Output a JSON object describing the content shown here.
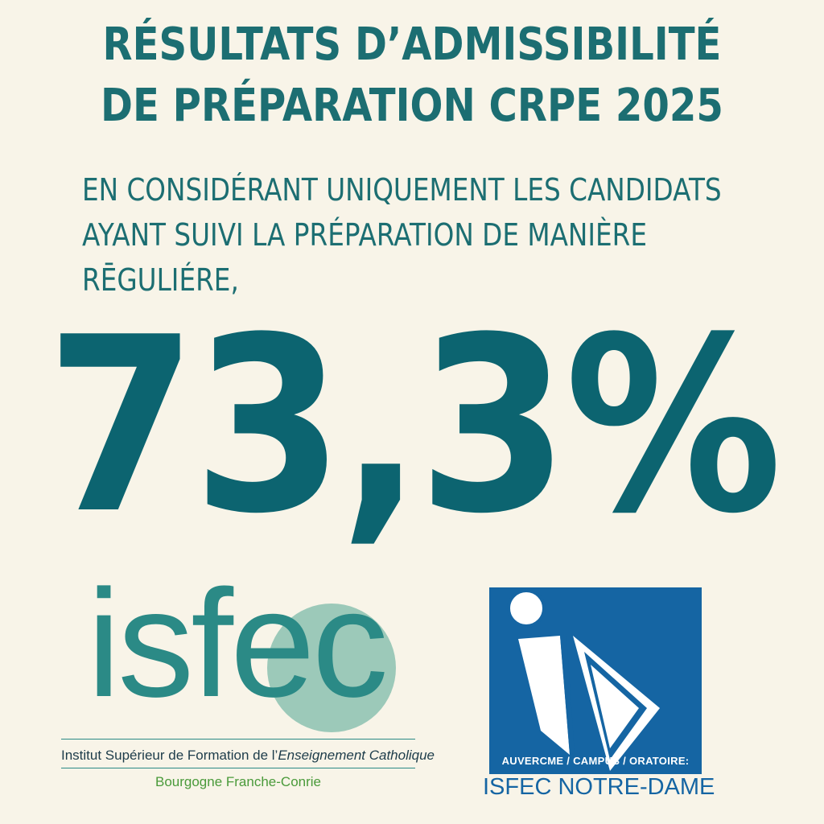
{
  "header": {
    "title_line1": "RÉSULTATS D’ADMISSIBILITÉ",
    "title_line2": "DE PRÉPARATION CRPE 2025"
  },
  "subtitle": {
    "line1": "EN CONSIDÉRANT UNIQUEMENT LES CANDIDATS",
    "line2": "AYANT SUIVI LA PRÉPARATION DE MANIÈRE",
    "line3": "RĒGULIÉRE,"
  },
  "stat": {
    "value": "73,3%"
  },
  "isfec_logo": {
    "wordmark": "isfec",
    "tagline_prefix": "Institut Supérieur de Formation de l’",
    "tagline_italic": "Enseignement Catholique",
    "region": "Bourgogne Franche-Conrie",
    "colors": {
      "teal": "#2b8a86",
      "circle": "#9cc9b9",
      "green": "#4a9a3a"
    }
  },
  "notre_dame_logo": {
    "caption": "AUVERCME / CAMPUS / ORATOIRE:",
    "name": "ISFEC NOTRE-DAME",
    "colors": {
      "blue": "#1565a3"
    }
  },
  "colors": {
    "background": "#f8f4e8",
    "headline": "#1c6e72",
    "stat": "#0c6470"
  }
}
